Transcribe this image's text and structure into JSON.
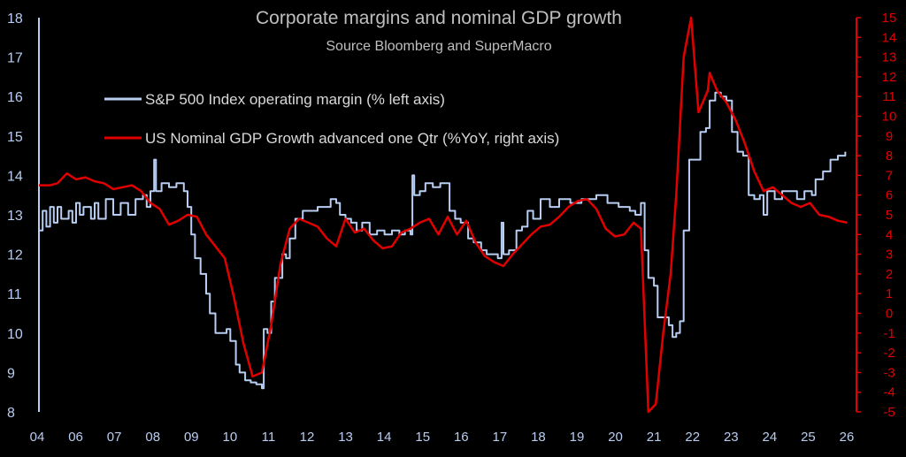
{
  "chart_data": {
    "type": "line",
    "title": "Corporate margins and nominal GDP growth",
    "subtitle": "Source Bloomberg and SuperMacro",
    "x_ticks": [
      "04",
      "06",
      "07",
      "08",
      "09",
      "10",
      "11",
      "12",
      "13",
      "14",
      "15",
      "16",
      "17",
      "18",
      "19",
      "20",
      "21",
      "22",
      "23",
      "24",
      "25",
      "26"
    ],
    "xlim": [
      2004.0,
      2026.0
    ],
    "y_left": {
      "lim": [
        8,
        18
      ],
      "ticks": [
        8,
        9,
        10,
        11,
        12,
        13,
        14,
        15,
        16,
        17,
        18
      ]
    },
    "y_right": {
      "lim": [
        -5,
        15
      ],
      "ticks": [
        -5,
        -4,
        -3,
        -2,
        -1,
        0,
        1,
        2,
        3,
        4,
        5,
        6,
        7,
        8,
        9,
        10,
        11,
        12,
        13,
        14,
        15
      ]
    },
    "legend_position": "top-left",
    "series": [
      {
        "name": "S&P 500 Index operating margin (% left axis)",
        "axis": "left",
        "color": "#b8cdf2",
        "style": "step",
        "points": [
          [
            2004.0,
            12.6
          ],
          [
            2004.1,
            13.1
          ],
          [
            2004.2,
            12.7
          ],
          [
            2004.3,
            13.2
          ],
          [
            2004.4,
            12.8
          ],
          [
            2004.5,
            13.2
          ],
          [
            2004.6,
            12.9
          ],
          [
            2004.8,
            13.1
          ],
          [
            2004.9,
            12.8
          ],
          [
            2005.0,
            13.3
          ],
          [
            2005.1,
            13.0
          ],
          [
            2005.2,
            13.2
          ],
          [
            2005.4,
            12.9
          ],
          [
            2005.5,
            13.3
          ],
          [
            2005.6,
            12.9
          ],
          [
            2005.8,
            13.4
          ],
          [
            2006.0,
            13.0
          ],
          [
            2006.2,
            13.3
          ],
          [
            2006.4,
            13.0
          ],
          [
            2006.6,
            13.4
          ],
          [
            2006.8,
            13.5
          ],
          [
            2006.9,
            13.2
          ],
          [
            2007.0,
            13.6
          ],
          [
            2007.1,
            14.4
          ],
          [
            2007.15,
            13.6
          ],
          [
            2007.3,
            13.8
          ],
          [
            2007.5,
            13.7
          ],
          [
            2007.7,
            13.8
          ],
          [
            2007.9,
            13.6
          ],
          [
            2008.0,
            13.2
          ],
          [
            2008.1,
            12.5
          ],
          [
            2008.2,
            11.9
          ],
          [
            2008.35,
            11.5
          ],
          [
            2008.5,
            11.0
          ],
          [
            2008.6,
            10.5
          ],
          [
            2008.75,
            10.0
          ],
          [
            2008.9,
            10.0
          ],
          [
            2009.05,
            10.1
          ],
          [
            2009.15,
            9.8
          ],
          [
            2009.3,
            9.2
          ],
          [
            2009.4,
            9.0
          ],
          [
            2009.55,
            8.8
          ],
          [
            2009.7,
            8.75
          ],
          [
            2009.85,
            8.7
          ],
          [
            2010.0,
            8.6
          ],
          [
            2010.05,
            10.1
          ],
          [
            2010.15,
            10.0
          ],
          [
            2010.25,
            10.8
          ],
          [
            2010.35,
            11.4
          ],
          [
            2010.45,
            11.4
          ],
          [
            2010.55,
            12.0
          ],
          [
            2010.65,
            11.9
          ],
          [
            2010.75,
            12.4
          ],
          [
            2010.9,
            12.9
          ],
          [
            2011.1,
            13.1
          ],
          [
            2011.3,
            13.1
          ],
          [
            2011.5,
            13.2
          ],
          [
            2011.7,
            13.2
          ],
          [
            2011.85,
            13.4
          ],
          [
            2012.0,
            13.3
          ],
          [
            2012.1,
            13.0
          ],
          [
            2012.25,
            12.9
          ],
          [
            2012.4,
            12.8
          ],
          [
            2012.55,
            12.6
          ],
          [
            2012.7,
            12.8
          ],
          [
            2012.9,
            12.5
          ],
          [
            2013.1,
            12.6
          ],
          [
            2013.3,
            12.5
          ],
          [
            2013.5,
            12.6
          ],
          [
            2013.7,
            12.5
          ],
          [
            2013.85,
            12.6
          ],
          [
            2014.0,
            12.5
          ],
          [
            2014.05,
            14.0
          ],
          [
            2014.1,
            13.5
          ],
          [
            2014.25,
            13.6
          ],
          [
            2014.4,
            13.8
          ],
          [
            2014.6,
            13.7
          ],
          [
            2014.8,
            13.8
          ],
          [
            2014.95,
            13.8
          ],
          [
            2015.05,
            13.1
          ],
          [
            2015.2,
            12.9
          ],
          [
            2015.35,
            12.8
          ],
          [
            2015.55,
            12.4
          ],
          [
            2015.7,
            12.3
          ],
          [
            2015.9,
            12.1
          ],
          [
            2016.05,
            12.0
          ],
          [
            2016.2,
            12.0
          ],
          [
            2016.35,
            11.9
          ],
          [
            2016.45,
            12.8
          ],
          [
            2016.5,
            12.0
          ],
          [
            2016.65,
            12.1
          ],
          [
            2016.85,
            12.6
          ],
          [
            2017.0,
            12.7
          ],
          [
            2017.15,
            13.1
          ],
          [
            2017.3,
            12.9
          ],
          [
            2017.5,
            13.4
          ],
          [
            2017.75,
            13.2
          ],
          [
            2018.0,
            13.4
          ],
          [
            2018.3,
            13.3
          ],
          [
            2018.6,
            13.4
          ],
          [
            2018.85,
            13.4
          ],
          [
            2019.0,
            13.5
          ],
          [
            2019.3,
            13.3
          ],
          [
            2019.6,
            13.2
          ],
          [
            2019.9,
            13.1
          ],
          [
            2020.05,
            13.0
          ],
          [
            2020.2,
            13.3
          ],
          [
            2020.3,
            12.1
          ],
          [
            2020.4,
            11.4
          ],
          [
            2020.55,
            11.2
          ],
          [
            2020.65,
            10.4
          ],
          [
            2020.8,
            10.4
          ],
          [
            2020.95,
            10.2
          ],
          [
            2021.05,
            9.9
          ],
          [
            2021.15,
            10.0
          ],
          [
            2021.25,
            10.3
          ],
          [
            2021.35,
            12.6
          ],
          [
            2021.5,
            14.4
          ],
          [
            2021.65,
            14.4
          ],
          [
            2021.8,
            15.1
          ],
          [
            2021.95,
            15.2
          ],
          [
            2022.05,
            15.9
          ],
          [
            2022.2,
            16.1
          ],
          [
            2022.35,
            16.0
          ],
          [
            2022.5,
            15.9
          ],
          [
            2022.65,
            15.1
          ],
          [
            2022.8,
            14.6
          ],
          [
            2022.95,
            14.5
          ],
          [
            2023.1,
            13.5
          ],
          [
            2023.25,
            13.4
          ],
          [
            2023.4,
            13.5
          ],
          [
            2023.5,
            13.0
          ],
          [
            2023.6,
            13.6
          ],
          [
            2023.8,
            13.4
          ],
          [
            2024.0,
            13.6
          ],
          [
            2024.2,
            13.6
          ],
          [
            2024.4,
            13.4
          ],
          [
            2024.6,
            13.6
          ],
          [
            2024.8,
            13.5
          ],
          [
            2024.9,
            13.9
          ],
          [
            2025.1,
            14.1
          ],
          [
            2025.3,
            14.4
          ],
          [
            2025.5,
            14.5
          ],
          [
            2025.7,
            14.6
          ]
        ]
      },
      {
        "name": "US Nominal GDP Growth advanced one Qtr (%YoY, right axis)",
        "axis": "right",
        "color": "#e00000",
        "style": "line",
        "points": [
          [
            2004.0,
            6.5
          ],
          [
            2004.3,
            6.5
          ],
          [
            2004.5,
            6.6
          ],
          [
            2004.75,
            7.1
          ],
          [
            2005.0,
            6.8
          ],
          [
            2005.25,
            6.9
          ],
          [
            2005.5,
            6.7
          ],
          [
            2005.75,
            6.6
          ],
          [
            2006.0,
            6.3
          ],
          [
            2006.25,
            6.4
          ],
          [
            2006.5,
            6.5
          ],
          [
            2006.75,
            6.2
          ],
          [
            2007.0,
            5.6
          ],
          [
            2007.25,
            5.3
          ],
          [
            2007.5,
            4.5
          ],
          [
            2007.75,
            4.7
          ],
          [
            2008.0,
            5.0
          ],
          [
            2008.25,
            4.9
          ],
          [
            2008.5,
            4.0
          ],
          [
            2008.75,
            3.4
          ],
          [
            2009.0,
            2.8
          ],
          [
            2009.25,
            0.8
          ],
          [
            2009.5,
            -1.5
          ],
          [
            2009.75,
            -3.2
          ],
          [
            2010.0,
            -3.0
          ],
          [
            2010.25,
            -0.6
          ],
          [
            2010.5,
            2.5
          ],
          [
            2010.75,
            4.3
          ],
          [
            2011.0,
            4.8
          ],
          [
            2011.25,
            4.6
          ],
          [
            2011.5,
            4.4
          ],
          [
            2011.75,
            3.8
          ],
          [
            2012.0,
            3.4
          ],
          [
            2012.25,
            4.8
          ],
          [
            2012.5,
            4.1
          ],
          [
            2012.75,
            4.3
          ],
          [
            2013.0,
            3.7
          ],
          [
            2013.25,
            3.3
          ],
          [
            2013.5,
            3.4
          ],
          [
            2013.75,
            4.1
          ],
          [
            2014.0,
            4.3
          ],
          [
            2014.25,
            4.6
          ],
          [
            2014.5,
            4.8
          ],
          [
            2014.75,
            4.0
          ],
          [
            2015.0,
            4.9
          ],
          [
            2015.25,
            4.0
          ],
          [
            2015.5,
            4.7
          ],
          [
            2015.75,
            3.6
          ],
          [
            2016.0,
            2.9
          ],
          [
            2016.25,
            2.6
          ],
          [
            2016.5,
            2.4
          ],
          [
            2016.75,
            3.0
          ],
          [
            2017.0,
            3.5
          ],
          [
            2017.25,
            4.0
          ],
          [
            2017.5,
            4.4
          ],
          [
            2017.75,
            4.5
          ],
          [
            2018.0,
            4.9
          ],
          [
            2018.25,
            5.4
          ],
          [
            2018.5,
            5.7
          ],
          [
            2018.75,
            5.8
          ],
          [
            2019.0,
            5.3
          ],
          [
            2019.25,
            4.3
          ],
          [
            2019.5,
            3.9
          ],
          [
            2019.75,
            4.0
          ],
          [
            2020.0,
            4.6
          ],
          [
            2020.2,
            4.3
          ],
          [
            2020.4,
            -5.0
          ],
          [
            2020.6,
            -4.6
          ],
          [
            2020.8,
            -1.0
          ],
          [
            2021.0,
            2.0
          ],
          [
            2021.15,
            6.0
          ],
          [
            2021.35,
            13.0
          ],
          [
            2021.55,
            15.0
          ],
          [
            2021.75,
            10.2
          ],
          [
            2022.0,
            11.3
          ],
          [
            2022.05,
            12.2
          ],
          [
            2022.25,
            11.3
          ],
          [
            2022.5,
            10.7
          ],
          [
            2022.75,
            9.8
          ],
          [
            2023.0,
            8.6
          ],
          [
            2023.25,
            7.2
          ],
          [
            2023.5,
            6.2
          ],
          [
            2023.75,
            6.4
          ],
          [
            2024.0,
            6.0
          ],
          [
            2024.25,
            5.6
          ],
          [
            2024.5,
            5.4
          ],
          [
            2024.75,
            5.6
          ],
          [
            2025.0,
            5.0
          ],
          [
            2025.25,
            4.9
          ],
          [
            2025.5,
            4.7
          ],
          [
            2025.75,
            4.6
          ]
        ]
      }
    ]
  }
}
